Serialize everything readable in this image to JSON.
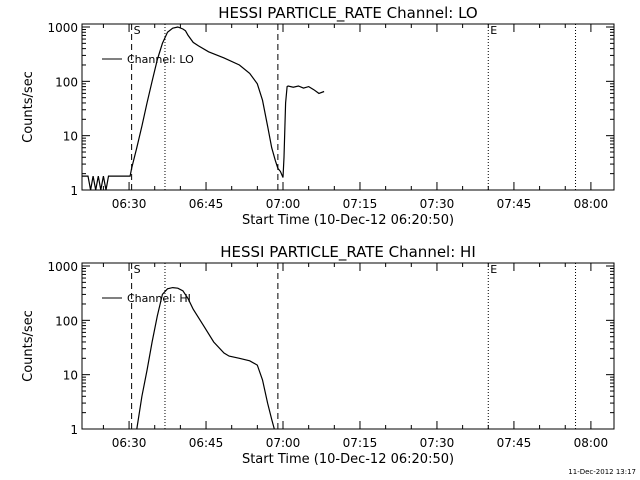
{
  "timestamp": "11-Dec-2012 13:17",
  "chart_data": [
    {
      "type": "line",
      "title": "HESSI PARTICLE_RATE Channel: LO",
      "xlabel": "Start Time (10-Dec-12 06:20:50)",
      "ylabel": "Counts/sec",
      "yscale": "log",
      "ylim": [
        1,
        1000
      ],
      "xlim_minutes": [
        380.83,
        484.5
      ],
      "x_tick_labels": [
        "06:30",
        "06:45",
        "07:00",
        "07:15",
        "07:30",
        "07:45",
        "08:00"
      ],
      "y_tick_labels": [
        "1",
        "10",
        "100",
        "1000"
      ],
      "markers": [
        {
          "label": "S",
          "time_min": 390.5,
          "style": "dashed"
        },
        {
          "label": "",
          "time_min": 397.0,
          "style": "dotted"
        },
        {
          "label": "",
          "time_min": 419.0,
          "style": "dashed"
        },
        {
          "label": "E",
          "time_min": 460.0,
          "style": "dotted"
        },
        {
          "label": "",
          "time_min": 477.0,
          "style": "dotted"
        }
      ],
      "series": [
        {
          "name": "Channel: LO",
          "x_min": [
            380.83,
            382.0,
            382.5,
            383.0,
            383.5,
            384.0,
            384.5,
            385.0,
            385.5,
            386.0,
            390.2,
            390.5,
            391.5,
            392.5,
            393.5,
            394.5,
            395.5,
            396.5,
            397.5,
            398.5,
            399.5,
            400.5,
            401.0,
            401.5,
            402.5,
            403.5,
            405.5,
            408.5,
            411.5,
            413.5,
            415.0,
            416.0,
            417.0,
            417.8,
            418.5,
            419.0,
            419.5,
            420.0,
            420.2,
            420.5,
            420.8,
            421.0,
            422.0,
            423.0,
            424.0,
            425.0,
            426.0,
            427.0,
            428.0
          ],
          "y": [
            1.8,
            1.8,
            1,
            1.8,
            1,
            1.8,
            1,
            1.8,
            1,
            1.8,
            1.8,
            2.5,
            6,
            15,
            40,
            100,
            250,
            500,
            800,
            950,
            1000,
            920,
            850,
            700,
            520,
            450,
            350,
            270,
            200,
            140,
            90,
            45,
            15,
            6,
            3.5,
            2.5,
            2.2,
            1.7,
            4,
            40,
            80,
            82,
            78,
            82,
            75,
            80,
            70,
            60,
            65
          ]
        }
      ]
    },
    {
      "type": "line",
      "title": "HESSI PARTICLE_RATE Channel: HI",
      "xlabel": "Start Time (10-Dec-12 06:20:50)",
      "ylabel": "Counts/sec",
      "yscale": "log",
      "ylim": [
        1,
        1000
      ],
      "xlim_minutes": [
        380.83,
        484.5
      ],
      "x_tick_labels": [
        "06:30",
        "06:45",
        "07:00",
        "07:15",
        "07:30",
        "07:45",
        "08:00"
      ],
      "y_tick_labels": [
        "1",
        "10",
        "100",
        "1000"
      ],
      "markers": [
        {
          "label": "S",
          "time_min": 390.5,
          "style": "dashed"
        },
        {
          "label": "",
          "time_min": 397.0,
          "style": "dotted"
        },
        {
          "label": "",
          "time_min": 419.0,
          "style": "dashed"
        },
        {
          "label": "E",
          "time_min": 460.0,
          "style": "dotted"
        },
        {
          "label": "",
          "time_min": 477.0,
          "style": "dotted"
        }
      ],
      "series": [
        {
          "name": "Channel: HI",
          "x_min": [
            391.5,
            392.5,
            393.5,
            394.5,
            395.5,
            396.5,
            397.5,
            398.5,
            399.5,
            400.5,
            401.5,
            402.5,
            404.5,
            406.5,
            408.5,
            409.5,
            411.5,
            413.5,
            415.0,
            416.0,
            417.0,
            417.8,
            418.3
          ],
          "y": [
            1,
            4,
            12,
            40,
            120,
            300,
            380,
            400,
            390,
            350,
            250,
            160,
            80,
            40,
            25,
            22,
            20,
            18,
            15,
            8,
            3,
            1.5,
            1
          ]
        }
      ]
    }
  ]
}
